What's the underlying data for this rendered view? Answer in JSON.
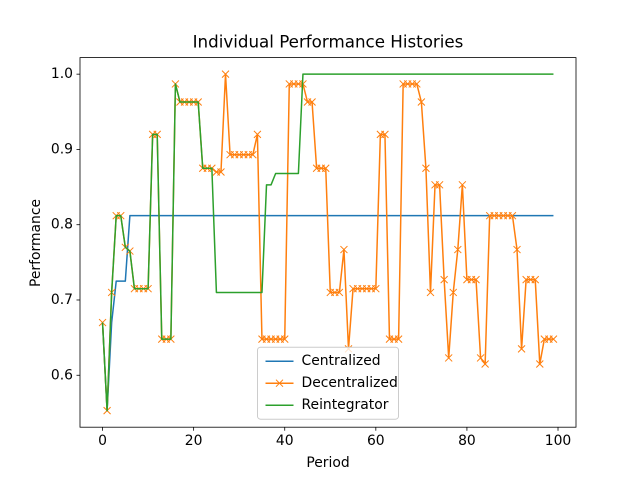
{
  "chart_data": {
    "type": "line",
    "title": "Individual Performance Histories",
    "x_label": "Period",
    "y_label": "Performance",
    "x": [
      0,
      1,
      2,
      3,
      4,
      5,
      6,
      7,
      8,
      9,
      10,
      11,
      12,
      13,
      14,
      15,
      16,
      17,
      18,
      19,
      20,
      21,
      22,
      23,
      24,
      25,
      26,
      27,
      28,
      29,
      30,
      31,
      32,
      33,
      34,
      35,
      36,
      37,
      38,
      39,
      40,
      41,
      42,
      43,
      44,
      45,
      46,
      47,
      48,
      49,
      50,
      51,
      52,
      53,
      54,
      55,
      56,
      57,
      58,
      59,
      60,
      61,
      62,
      63,
      64,
      65,
      66,
      67,
      68,
      69,
      70,
      71,
      72,
      73,
      74,
      75,
      76,
      77,
      78,
      79,
      80,
      81,
      82,
      83,
      84,
      85,
      86,
      87,
      88,
      89,
      90,
      91,
      92,
      93,
      94,
      95,
      96,
      97,
      98,
      99
    ],
    "series": [
      {
        "name": "Centralized",
        "color": "#1f77b4",
        "marker": null,
        "values": [
          0.67,
          0.553,
          0.67,
          0.725,
          0.725,
          0.725,
          0.812,
          0.812,
          0.812,
          0.812,
          0.812,
          0.812,
          0.812,
          0.812,
          0.812,
          0.812,
          0.812,
          0.812,
          0.812,
          0.812,
          0.812,
          0.812,
          0.812,
          0.812,
          0.812,
          0.812,
          0.812,
          0.812,
          0.812,
          0.812,
          0.812,
          0.812,
          0.812,
          0.812,
          0.812,
          0.812,
          0.812,
          0.812,
          0.812,
          0.812,
          0.812,
          0.812,
          0.812,
          0.812,
          0.812,
          0.812,
          0.812,
          0.812,
          0.812,
          0.812,
          0.812,
          0.812,
          0.812,
          0.812,
          0.812,
          0.812,
          0.812,
          0.812,
          0.812,
          0.812,
          0.812,
          0.812,
          0.812,
          0.812,
          0.812,
          0.812,
          0.812,
          0.812,
          0.812,
          0.812,
          0.812,
          0.812,
          0.812,
          0.812,
          0.812,
          0.812,
          0.812,
          0.812,
          0.812,
          0.812,
          0.812,
          0.812,
          0.812,
          0.812,
          0.812,
          0.812,
          0.812,
          0.812,
          0.812,
          0.812,
          0.812,
          0.812,
          0.812,
          0.812,
          0.812,
          0.812,
          0.812,
          0.812,
          0.812,
          0.812
        ]
      },
      {
        "name": "Decentralized",
        "color": "#ff7f0e",
        "marker": "x",
        "values": [
          0.67,
          0.553,
          0.71,
          0.812,
          0.812,
          0.77,
          0.765,
          0.715,
          0.715,
          0.715,
          0.715,
          0.92,
          0.92,
          0.648,
          0.648,
          0.648,
          0.987,
          0.963,
          0.963,
          0.963,
          0.963,
          0.963,
          0.875,
          0.875,
          0.875,
          0.87,
          0.87,
          1.0,
          0.893,
          0.893,
          0.893,
          0.893,
          0.893,
          0.893,
          0.92,
          0.648,
          0.648,
          0.648,
          0.648,
          0.648,
          0.648,
          0.987,
          0.987,
          0.987,
          0.987,
          0.963,
          0.963,
          0.875,
          0.875,
          0.875,
          0.71,
          0.71,
          0.71,
          0.767,
          0.635,
          0.715,
          0.715,
          0.715,
          0.715,
          0.715,
          0.715,
          0.92,
          0.92,
          0.648,
          0.648,
          0.648,
          0.987,
          0.987,
          0.987,
          0.987,
          0.963,
          0.875,
          0.71,
          0.853,
          0.853,
          0.727,
          0.623,
          0.71,
          0.767,
          0.853,
          0.727,
          0.727,
          0.727,
          0.623,
          0.615,
          0.812,
          0.812,
          0.812,
          0.812,
          0.812,
          0.812,
          0.767,
          0.635,
          0.727,
          0.727,
          0.727,
          0.615,
          0.648,
          0.648,
          0.648
        ]
      },
      {
        "name": "Reintegrator",
        "color": "#2ca02c",
        "marker": null,
        "values": [
          0.67,
          0.553,
          0.71,
          0.812,
          0.812,
          0.77,
          0.765,
          0.715,
          0.715,
          0.715,
          0.715,
          0.92,
          0.92,
          0.648,
          0.648,
          0.648,
          0.987,
          0.963,
          0.963,
          0.963,
          0.963,
          0.963,
          0.875,
          0.875,
          0.875,
          0.71,
          0.71,
          0.71,
          0.71,
          0.71,
          0.71,
          0.71,
          0.71,
          0.71,
          0.71,
          0.71,
          0.853,
          0.853,
          0.868,
          0.868,
          0.868,
          0.868,
          0.868,
          0.868,
          1.0,
          1.0,
          1.0,
          1.0,
          1.0,
          1.0,
          1.0,
          1.0,
          1.0,
          1.0,
          1.0,
          1.0,
          1.0,
          1.0,
          1.0,
          1.0,
          1.0,
          1.0,
          1.0,
          1.0,
          1.0,
          1.0,
          1.0,
          1.0,
          1.0,
          1.0,
          1.0,
          1.0,
          1.0,
          1.0,
          1.0,
          1.0,
          1.0,
          1.0,
          1.0,
          1.0,
          1.0,
          1.0,
          1.0,
          1.0,
          1.0,
          1.0,
          1.0,
          1.0,
          1.0,
          1.0,
          1.0,
          1.0,
          1.0,
          1.0,
          1.0,
          1.0,
          1.0,
          1.0,
          1.0,
          1.0
        ]
      }
    ],
    "xlim": [
      -4.95,
      103.95
    ],
    "xticks": [
      0,
      20,
      40,
      60,
      80,
      100
    ],
    "ylim": [
      0.531,
      1.022
    ],
    "yticks": [
      0.6,
      0.7,
      0.8,
      0.9,
      {
        "value": 1,
        "label": "1.0"
      }
    ],
    "grid": false,
    "legend": "lower center"
  }
}
